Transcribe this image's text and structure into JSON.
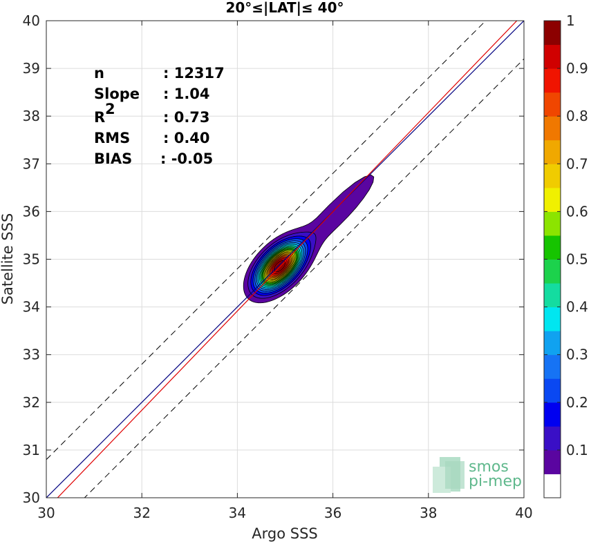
{
  "chart_data": {
    "type": "heatmap",
    "title": "20°≤|LAT|≤ 40°",
    "xlabel": "Argo SSS",
    "ylabel": "Satellite SSS",
    "xlim": [
      30,
      40
    ],
    "ylim": [
      30,
      40
    ],
    "xticks": [
      "30",
      "32",
      "34",
      "36",
      "38",
      "40"
    ],
    "yticks": [
      "30",
      "31",
      "32",
      "33",
      "34",
      "35",
      "36",
      "37",
      "38",
      "39",
      "40"
    ],
    "grid": true,
    "stats": [
      {
        "label": "n",
        "value": ": 12317"
      },
      {
        "label": "Slope",
        "value": ": 1.04"
      },
      {
        "label": "R",
        "sup": "2",
        "value": ": 0.73"
      },
      {
        "label": "RMS",
        "value": ": 0.40"
      },
      {
        "label": "BIAS",
        "value": ": -0.05"
      }
    ],
    "lines": {
      "one_to_one": {
        "slope": 1,
        "intercept": 0,
        "color": "#000080"
      },
      "fit": {
        "slope": 1.04,
        "bias": -0.05,
        "color": "#e00000"
      },
      "dashed_offset": 0.8
    },
    "density": {
      "center": [
        34.88,
        34.85
      ],
      "levels": [
        0.05,
        0.1,
        0.15,
        0.2,
        0.25,
        0.3,
        0.35,
        0.4,
        0.45,
        0.5,
        0.55,
        0.6,
        0.65,
        0.7,
        0.75,
        0.8,
        0.85,
        0.9,
        0.95
      ]
    },
    "colorbar": {
      "range": [
        0,
        1
      ],
      "ticks": [
        "0.1",
        "0.2",
        "0.3",
        "0.4",
        "0.5",
        "0.6",
        "0.7",
        "0.8",
        "0.9",
        "1"
      ],
      "colors": [
        "#ffffff",
        "#5a05a0",
        "#3a0fc6",
        "#0000f0",
        "#0a48f2",
        "#1673f4",
        "#10a2f0",
        "#00e6f0",
        "#14dca0",
        "#1cd24c",
        "#16c400",
        "#8ce400",
        "#f0f000",
        "#f0cc00",
        "#f0a800",
        "#f07800",
        "#f04600",
        "#f01400",
        "#d00000",
        "#8c0000"
      ]
    }
  },
  "logo": {
    "line1": "smos",
    "line2": "pi-mep"
  }
}
